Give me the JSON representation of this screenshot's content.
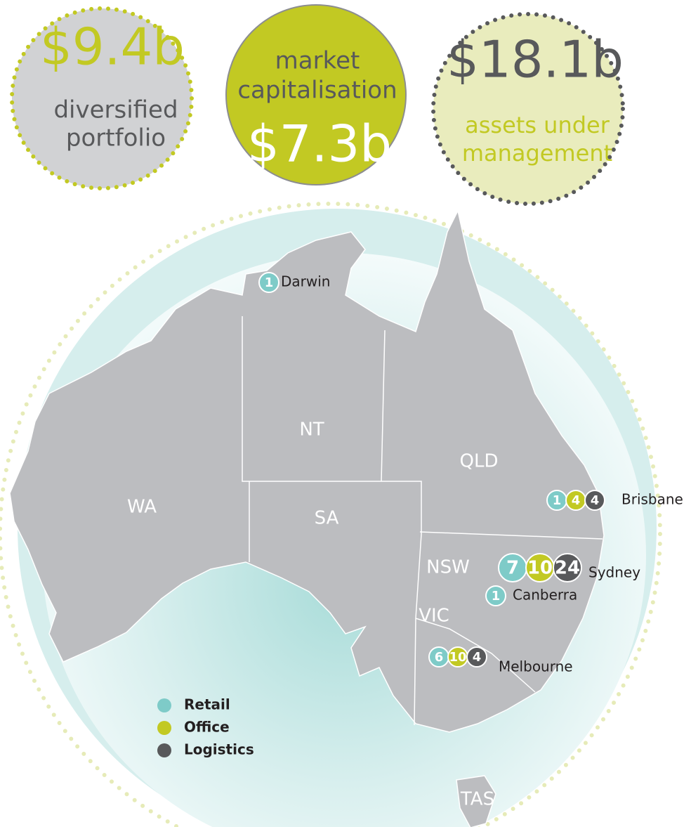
{
  "stats": [
    {
      "value": "$9.4b",
      "label_lines": [
        "diversified",
        "portfolio"
      ]
    },
    {
      "label_lines": [
        "market",
        "capitalisation"
      ],
      "value": "$7.3b"
    },
    {
      "value": "$18.1b",
      "label_lines": [
        "assets under",
        "management"
      ]
    }
  ],
  "states": [
    "WA",
    "NT",
    "SA",
    "QLD",
    "NSW",
    "VIC",
    "TAS"
  ],
  "legend": [
    {
      "name": "Retail",
      "color": "#7ecbc8"
    },
    {
      "name": "Office",
      "color": "#c2c923"
    },
    {
      "name": "Logistics",
      "color": "#58595b"
    }
  ],
  "cities": [
    {
      "name": "Darwin",
      "counts": [
        1
      ]
    },
    {
      "name": "Brisbane",
      "counts": [
        1,
        4,
        4
      ]
    },
    {
      "name": "Sydney",
      "counts": [
        7,
        10,
        24
      ]
    },
    {
      "name": "Canberra",
      "counts": [
        1
      ]
    },
    {
      "name": "Melbourne",
      "counts": [
        6,
        10,
        4
      ]
    }
  ]
}
